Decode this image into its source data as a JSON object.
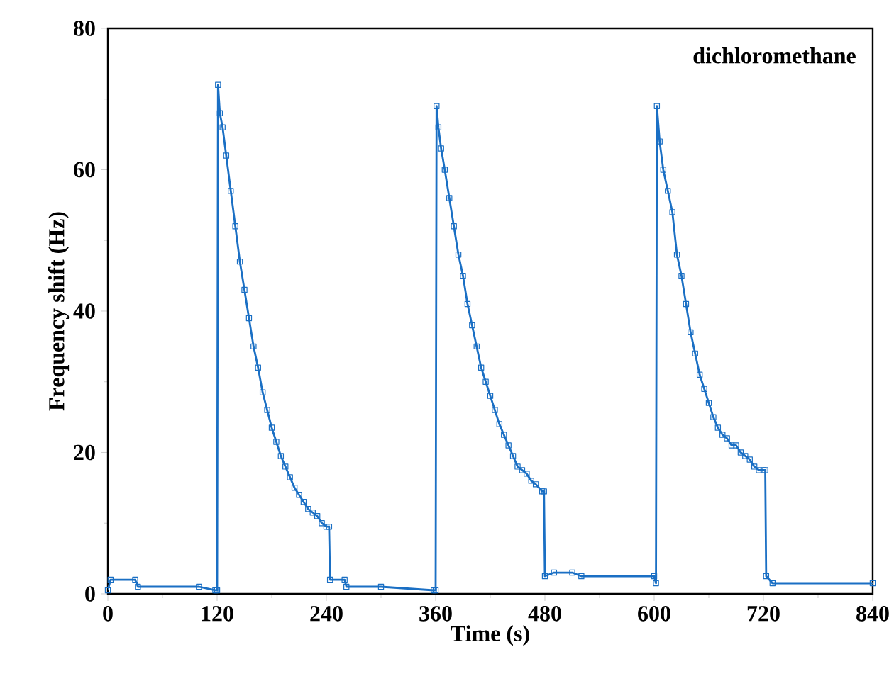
{
  "chart_data": {
    "type": "line",
    "xlabel": "Time (s)",
    "ylabel": "Frequency shift (Hz)",
    "annotations": [
      "dichloromethane"
    ],
    "xlim": [
      0,
      840
    ],
    "ylim": [
      0,
      80
    ],
    "xticks": [
      0,
      120,
      240,
      360,
      480,
      600,
      720,
      840
    ],
    "yticks": [
      0,
      20,
      40,
      60,
      80
    ],
    "grid": false,
    "marker": "square",
    "line_style": "solid",
    "series": [
      {
        "color": "#1a6fc4",
        "x": [
          0,
          3,
          30,
          33,
          100,
          118,
          120,
          121,
          123,
          126,
          130,
          135,
          140,
          145,
          150,
          155,
          160,
          165,
          170,
          175,
          180,
          185,
          190,
          195,
          200,
          205,
          210,
          215,
          220,
          225,
          230,
          235,
          240,
          243,
          244,
          260,
          262,
          300,
          358,
          360,
          361,
          363,
          366,
          370,
          375,
          380,
          385,
          390,
          395,
          400,
          405,
          410,
          415,
          420,
          425,
          430,
          435,
          440,
          445,
          450,
          455,
          460,
          465,
          470,
          477,
          479,
          480,
          490,
          510,
          520,
          600,
          602,
          603,
          606,
          610,
          615,
          620,
          625,
          630,
          635,
          640,
          645,
          650,
          655,
          660,
          665,
          670,
          675,
          680,
          685,
          690,
          695,
          700,
          705,
          710,
          715,
          720,
          722,
          723,
          730,
          840
        ],
        "values": [
          0.5,
          2,
          2,
          1,
          1,
          0.5,
          0.5,
          72,
          68,
          66,
          62,
          57,
          52,
          47,
          43,
          39,
          35,
          32,
          28.5,
          26,
          23.5,
          21.5,
          19.5,
          18,
          16.5,
          15,
          14,
          13,
          12,
          11.5,
          11,
          10,
          9.5,
          9.5,
          2,
          2,
          1,
          1,
          0.5,
          0.5,
          69,
          66,
          63,
          60,
          56,
          52,
          48,
          45,
          41,
          38,
          35,
          32,
          30,
          28,
          26,
          24,
          22.5,
          21,
          19.5,
          18,
          17.5,
          17,
          16,
          15.5,
          14.5,
          14.5,
          2.5,
          3,
          3,
          2.5,
          2.5,
          1.5,
          69,
          64,
          60,
          57,
          54,
          48,
          45,
          41,
          37,
          34,
          31,
          29,
          27,
          25,
          23.5,
          22.5,
          22,
          21,
          21,
          20,
          19.5,
          19,
          18,
          17.5,
          17.5,
          17.5,
          2.5,
          1.5,
          1.5
        ]
      }
    ]
  }
}
